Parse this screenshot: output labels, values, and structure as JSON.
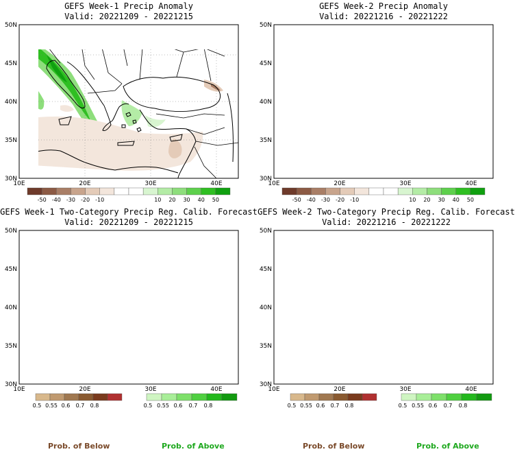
{
  "panels": [
    {
      "title": "GEFS Week-1 Precip Anomaly",
      "valid": "Valid: 20221209 - 20221215"
    },
    {
      "title": "GEFS Week-2 Precip Anomaly",
      "valid": "Valid: 20221216 - 20221222"
    },
    {
      "title": "GEFS Week-1 Two-Category Precip Reg. Calib. Forecast",
      "valid": "Valid: 20221209 - 20221215"
    },
    {
      "title": "GEFS Week-2 Two-Category Precip Reg. Calib. Forecast",
      "valid": "Valid: 20221216 - 20221222"
    }
  ],
  "lat_labels": [
    "50N",
    "45N",
    "40N",
    "35N",
    "30N"
  ],
  "lon_labels": [
    "10E",
    "20E",
    "30E",
    "40E"
  ],
  "anomaly_colorbar": {
    "labels": [
      "-50",
      "-40",
      "-30",
      "-20",
      "-10",
      "10",
      "20",
      "30",
      "40",
      "50"
    ],
    "colors": [
      "#6e3a2a",
      "#8c5a44",
      "#a97e66",
      "#c8a48c",
      "#e4cbb8",
      "#f3e6dc",
      "#ffffff",
      "#ffffff",
      "#d8f5d0",
      "#b4eca6",
      "#8ede7c",
      "#5ed04c",
      "#2fbf22",
      "#10a010"
    ]
  },
  "prob_below_colorbar": {
    "labels": [
      "0.5",
      "0.55",
      "0.6",
      "0.7",
      "0.8"
    ],
    "colors": [
      "#d8b88c",
      "#c09a70",
      "#a07850",
      "#8a5a30",
      "#7a3a1c",
      "#b03030"
    ]
  },
  "prob_above_colorbar": {
    "labels": [
      "0.5",
      "0.55",
      "0.6",
      "0.7",
      "0.8"
    ],
    "colors": [
      "#cff5c2",
      "#a8ee98",
      "#7ee06a",
      "#4fd040",
      "#22b81c",
      "#129a10"
    ]
  },
  "footer": {
    "below_label": "Prob. of Below",
    "above_label": "Prob. of Above",
    "below_color": "#7a4a2a",
    "above_color": "#1ea81e"
  },
  "colors": {
    "sea": "#dff7fb",
    "land_base": "#ffffff",
    "wet": "#33c433",
    "dry": "#8a5a30",
    "no_data": "#e6e6e6"
  }
}
